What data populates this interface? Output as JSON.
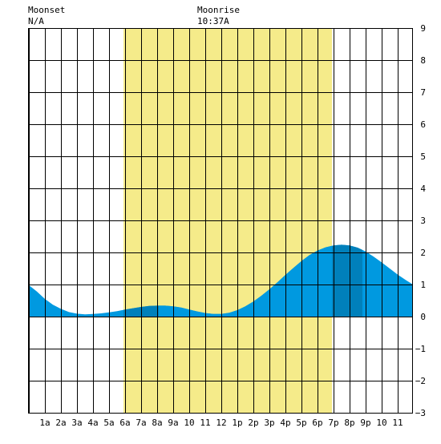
{
  "moon": {
    "set_label": "Moonset",
    "set_time": "N/A",
    "rise_label": "Moonrise",
    "rise_time": "10:37A"
  },
  "colors": {
    "daylight": "#f5eb8a",
    "tide_main": "#0099e0",
    "tide_dark": "#0080bb",
    "grid": "#000000",
    "background": "#ffffff"
  },
  "chart_data": {
    "type": "area",
    "title": "",
    "xlabel": "",
    "ylabel": "",
    "x_unit": "hour of day",
    "xlim": [
      -0.05,
      23.95
    ],
    "ylim": [
      -3,
      9
    ],
    "y_ticks": [
      -3,
      -2,
      -1,
      0,
      1,
      2,
      3,
      4,
      5,
      6,
      7,
      8,
      9
    ],
    "y_tick_labels": [
      "−3",
      "−2",
      "−1",
      "0",
      "1",
      "2",
      "3",
      "4",
      "5",
      "6",
      "7",
      "8",
      "9"
    ],
    "y_axis_side": "right",
    "x_tick_labels": [
      {
        "x": 1,
        "label": "1a"
      },
      {
        "x": 2,
        "label": "2a"
      },
      {
        "x": 3,
        "label": "3a"
      },
      {
        "x": 4,
        "label": "4a"
      },
      {
        "x": 5,
        "label": "5a"
      },
      {
        "x": 6,
        "label": "6a"
      },
      {
        "x": 7,
        "label": "7a"
      },
      {
        "x": 8,
        "label": "8a"
      },
      {
        "x": 9,
        "label": "9a"
      },
      {
        "x": 10,
        "label": "10"
      },
      {
        "x": 11,
        "label": "11"
      },
      {
        "x": 12,
        "label": "12"
      },
      {
        "x": 13,
        "label": "1p"
      },
      {
        "x": 14,
        "label": "2p"
      },
      {
        "x": 15,
        "label": "3p"
      },
      {
        "x": 16,
        "label": "4p"
      },
      {
        "x": 17,
        "label": "5p"
      },
      {
        "x": 18,
        "label": "6p"
      },
      {
        "x": 19,
        "label": "7p"
      },
      {
        "x": 20,
        "label": "8p"
      },
      {
        "x": 21,
        "label": "9p"
      },
      {
        "x": 22,
        "label": "10"
      },
      {
        "x": 23,
        "label": "11"
      }
    ],
    "grid": true,
    "daylight": {
      "start": 5.9,
      "end": 18.9
    },
    "high_tide_times": [
      8.1,
      20.8
    ],
    "tide": {
      "x": [
        -0.05,
        0.5,
        1,
        1.5,
        2,
        2.5,
        3,
        3.5,
        4,
        4.5,
        5,
        5.5,
        6,
        6.5,
        7,
        7.5,
        8,
        8.5,
        9,
        9.5,
        10,
        10.5,
        11,
        11.5,
        12,
        12.5,
        13,
        13.5,
        14,
        14.5,
        15,
        15.5,
        16,
        16.5,
        17,
        17.5,
        18,
        18.5,
        19,
        19.5,
        20,
        20.5,
        21,
        21.5,
        22,
        22.5,
        23,
        23.5,
        23.95
      ],
      "y": [
        1.0,
        0.78,
        0.55,
        0.37,
        0.24,
        0.14,
        0.09,
        0.07,
        0.08,
        0.1,
        0.13,
        0.17,
        0.22,
        0.26,
        0.3,
        0.33,
        0.34,
        0.34,
        0.32,
        0.28,
        0.22,
        0.16,
        0.11,
        0.08,
        0.08,
        0.12,
        0.2,
        0.32,
        0.47,
        0.65,
        0.85,
        1.07,
        1.3,
        1.52,
        1.73,
        1.92,
        2.06,
        2.16,
        2.22,
        2.24,
        2.22,
        2.15,
        2.03,
        1.87,
        1.69,
        1.5,
        1.31,
        1.14,
        1.0
      ]
    }
  }
}
